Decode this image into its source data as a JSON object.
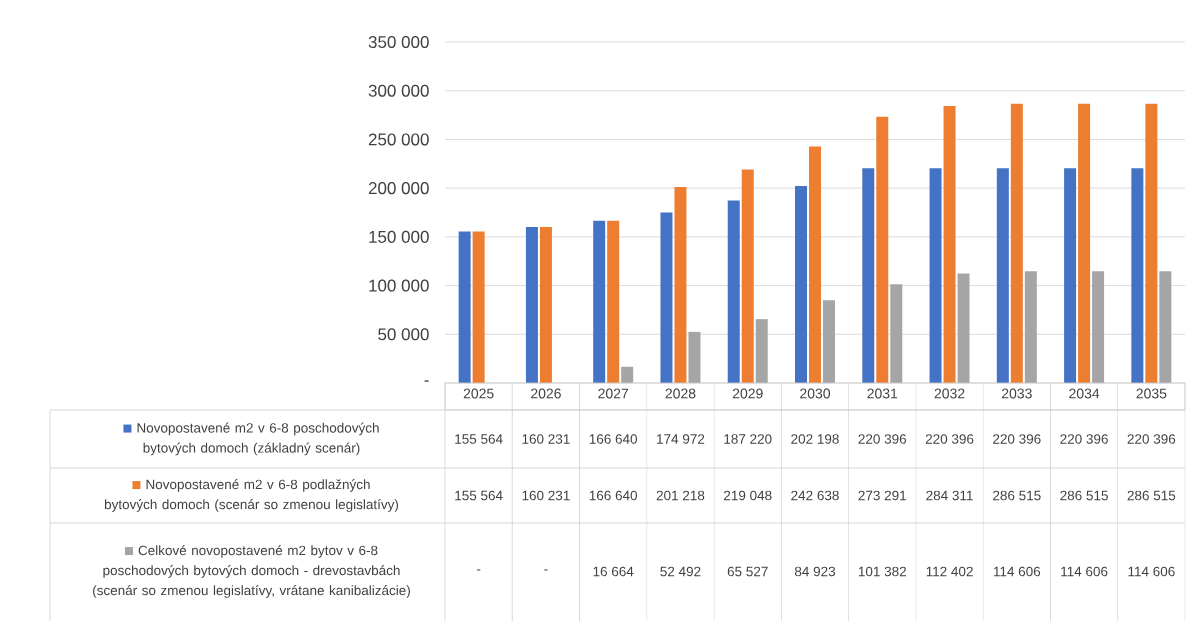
{
  "chart_data": {
    "type": "bar",
    "categories": [
      "2025",
      "2026",
      "2027",
      "2028",
      "2029",
      "2030",
      "2031",
      "2032",
      "2033",
      "2034",
      "2035"
    ],
    "series": [
      {
        "name": "Novopostavené m2 v 6-8 poschodových bytových domoch (základný scenár)",
        "color": "#4472c4",
        "values": [
          155564,
          160231,
          166640,
          174972,
          187220,
          202198,
          220396,
          220396,
          220396,
          220396,
          220396
        ],
        "value_labels": [
          "155 564",
          "160 231",
          "166 640",
          "174 972",
          "187 220",
          "202 198",
          "220 396",
          "220 396",
          "220 396",
          "220 396",
          "220 396"
        ]
      },
      {
        "name": "Novopostavené m2 v 6-8 podlažných bytových domoch (scenár so zmenou legislatívy)",
        "color": "#ed7d31",
        "values": [
          155564,
          160231,
          166640,
          201218,
          219048,
          242638,
          273291,
          284311,
          286515,
          286515,
          286515
        ],
        "value_labels": [
          "155 564",
          "160 231",
          "166 640",
          "201 218",
          "219 048",
          "242 638",
          "273 291",
          "284 311",
          "286 515",
          "286 515",
          "286 515"
        ]
      },
      {
        "name": "Celkové novopostavené m2 bytov v 6-8 poschodových bytových domoch - drevostavbách (scenár so zmenou legislatívy, vrátane kanibalizácie)",
        "color": "#a5a5a5",
        "values": [
          null,
          null,
          16664,
          52492,
          65527,
          84923,
          101382,
          112402,
          114606,
          114606,
          114606
        ],
        "value_labels": [
          "-",
          "-",
          "16 664",
          "52 492",
          "65 527",
          "84 923",
          "101 382",
          "112 402",
          "114 606",
          "114 606",
          "114 606"
        ]
      }
    ],
    "ylim": [
      0,
      350000
    ],
    "yticks": [
      {
        "value": 0,
        "label": "-"
      },
      {
        "value": 50000,
        "label": "50 000"
      },
      {
        "value": 100000,
        "label": "100 000"
      },
      {
        "value": 150000,
        "label": "150 000"
      },
      {
        "value": 200000,
        "label": "200 000"
      },
      {
        "value": 250000,
        "label": "250 000"
      },
      {
        "value": 300000,
        "label": "300 000"
      },
      {
        "value": 350000,
        "label": "350 000"
      }
    ],
    "grid": "y",
    "legend": "bottom"
  }
}
